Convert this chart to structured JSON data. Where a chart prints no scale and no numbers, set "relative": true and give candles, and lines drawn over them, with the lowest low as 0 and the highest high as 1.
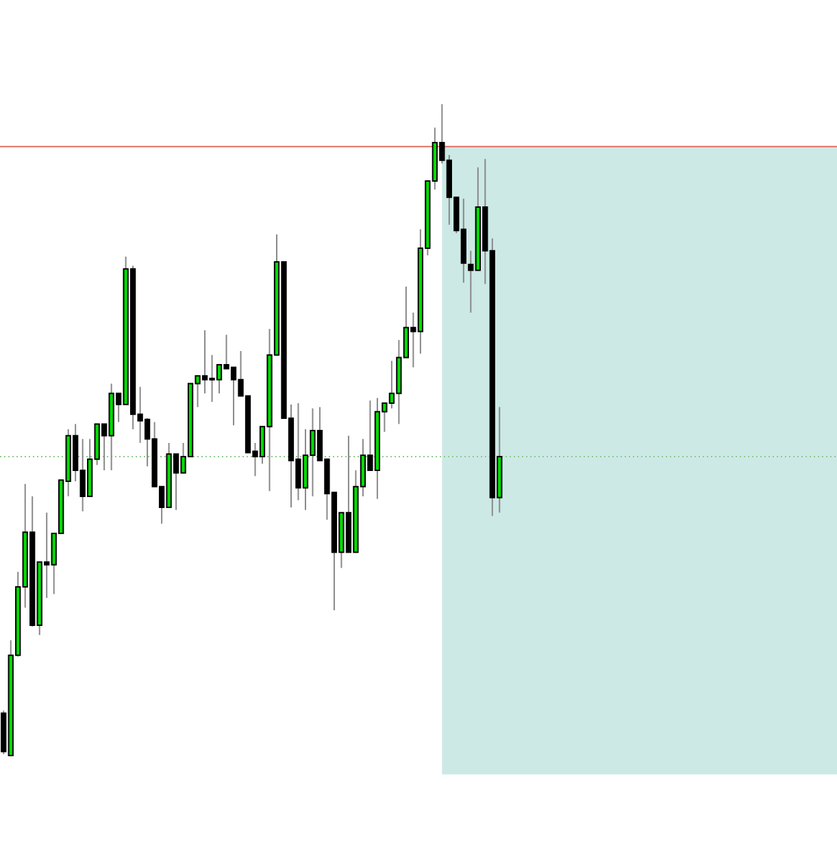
{
  "chart_data": {
    "type": "candlestick",
    "relative": true,
    "tick_labels": false,
    "colors": [
      "#000000",
      "#00dd00",
      "#00dd00",
      "#00dd00",
      "#000000",
      "#00dd00",
      "#000000",
      "#00dd00",
      "#00dd00",
      "#00dd00",
      "#000000",
      "#000000",
      "#00dd00",
      "#00dd00",
      "#000000",
      "#00dd00",
      "#000000",
      "#00dd00",
      "#000000",
      "#000000",
      "#000000",
      "#000000",
      "#000000",
      "#00dd00",
      "#000000",
      "#00dd00",
      "#00dd00",
      "#00dd00",
      "#000000",
      "#00dd00",
      "#00dd00",
      "#000000",
      "#000000",
      "#000000",
      "#000000",
      "#000000",
      "#00dd00",
      "#00dd00",
      "#00dd00",
      "#000000",
      "#000000",
      "#000000",
      "#00dd00",
      "#00dd00",
      "#000000",
      "#000000",
      "#000000",
      "#00dd00",
      "#000000",
      "#00dd00",
      "#00dd00",
      "#000000",
      "#00dd00",
      "#00dd00",
      "#00dd00",
      "#00dd00",
      "#00dd00",
      "#000000",
      "#00dd00",
      "#00dd00",
      "#00dd00",
      "#000000",
      "#000000",
      "#000000",
      "#000000",
      "#000000",
      "#00dd00",
      "#000000",
      "#000000",
      "#00dd00"
    ],
    "categories": [
      null,
      null,
      null,
      null,
      null,
      null,
      null,
      null,
      null,
      null,
      null,
      null,
      null,
      null,
      null,
      null,
      null,
      null,
      null,
      null,
      null,
      null,
      null,
      null,
      null,
      null,
      null,
      null,
      null,
      null,
      null,
      null,
      null,
      null,
      null,
      null,
      null,
      null,
      null,
      null,
      null,
      null,
      null,
      null,
      null,
      null,
      null,
      null,
      null,
      null,
      null,
      null,
      null,
      null,
      null,
      null,
      null,
      null,
      null,
      null,
      null,
      null,
      null,
      null,
      null,
      null,
      null,
      null,
      null,
      null
    ],
    "ohlc": [
      [
        0.065,
        0.069,
        0.002,
        0.006
      ],
      [
        0,
        0.177,
        0,
        0.154
      ],
      [
        0.154,
        0.282,
        0.152,
        0.259
      ],
      [
        0.259,
        0.417,
        0.227,
        0.343
      ],
      [
        0.343,
        0.398,
        0.198,
        0.2
      ],
      [
        0.2,
        0.297,
        0.185,
        0.297
      ],
      [
        0.297,
        0.373,
        0.242,
        0.293
      ],
      [
        0.293,
        0.341,
        0.248,
        0.341
      ],
      [
        0.341,
        0.423,
        0.341,
        0.423
      ],
      [
        0.421,
        0.501,
        0.398,
        0.491
      ],
      [
        0.491,
        0.509,
        0.421,
        0.438
      ],
      [
        0.438,
        0.486,
        0.375,
        0.398
      ],
      [
        0.398,
        0.486,
        0.398,
        0.455
      ],
      [
        0.455,
        0.509,
        0.446,
        0.509
      ],
      [
        0.509,
        0.509,
        0.438,
        0.491
      ],
      [
        0.491,
        0.571,
        0.438,
        0.556
      ],
      [
        0.556,
        0.556,
        0.512,
        0.539
      ],
      [
        0.539,
        0.766,
        0.539,
        0.747
      ],
      [
        0.747,
        0.752,
        0.501,
        0.524
      ],
      [
        0.524,
        0.566,
        0.48,
        0.514
      ],
      [
        0.516,
        0.518,
        0.444,
        0.486
      ],
      [
        0.486,
        0.512,
        0.413,
        0.413
      ],
      [
        0.413,
        0.413,
        0.356,
        0.381
      ],
      [
        0.381,
        0.48,
        0.381,
        0.463
      ],
      [
        0.463,
        0.463,
        0.377,
        0.434
      ],
      [
        0.434,
        0.48,
        0.434,
        0.459
      ],
      [
        0.459,
        0.571,
        0.459,
        0.571
      ],
      [
        0.571,
        0.583,
        0.535,
        0.583
      ],
      [
        0.583,
        0.653,
        0.556,
        0.577
      ],
      [
        0.577,
        0.615,
        0.543,
        0.579
      ],
      [
        0.577,
        0.6,
        0.556,
        0.6
      ],
      [
        0.6,
        0.646,
        0.594,
        0.594
      ],
      [
        0.596,
        0.596,
        0.507,
        0.577
      ],
      [
        0.577,
        0.621,
        0.552,
        0.552
      ],
      [
        0.552,
        0.552,
        0.465,
        0.465
      ],
      [
        0.467,
        0.48,
        0.429,
        0.459
      ],
      [
        0.459,
        0.505,
        0.448,
        0.505
      ],
      [
        0.505,
        0.655,
        0.406,
        0.615
      ],
      [
        0.615,
        0.8,
        0.615,
        0.758
      ],
      [
        0.758,
        0.758,
        0.518,
        0.518
      ],
      [
        0.518,
        0.539,
        0.381,
        0.453
      ],
      [
        0.455,
        0.541,
        0.392,
        0.411
      ],
      [
        0.411,
        0.501,
        0.377,
        0.461
      ],
      [
        0.461,
        0.533,
        0.398,
        0.499
      ],
      [
        0.499,
        0.535,
        0.453,
        0.453
      ],
      [
        0.455,
        0.455,
        0.362,
        0.402
      ],
      [
        0.404,
        0.404,
        0.223,
        0.312
      ],
      [
        0.312,
        0.373,
        0.288,
        0.373
      ],
      [
        0.373,
        0.491,
        0.312,
        0.312
      ],
      [
        0.312,
        0.438,
        0.312,
        0.413
      ],
      [
        0.413,
        0.486,
        0.398,
        0.461
      ],
      [
        0.461,
        0.545,
        0.438,
        0.438
      ],
      [
        0.438,
        0.549,
        0.394,
        0.528
      ],
      [
        0.528,
        0.541,
        0.497,
        0.541
      ],
      [
        0.541,
        0.606,
        0.533,
        0.556
      ],
      [
        0.556,
        0.638,
        0.509,
        0.611
      ],
      [
        0.611,
        0.72,
        0.611,
        0.657
      ],
      [
        0.657,
        0.68,
        0.596,
        0.651
      ],
      [
        0.651,
        0.808,
        0.617,
        0.779
      ],
      [
        0.779,
        0.882,
        0.768,
        0.882
      ],
      [
        0.882,
        0.964,
        0.869,
        0.941
      ],
      [
        0.941,
        1,
        0.909,
        0.914
      ],
      [
        0.914,
        0.922,
        0.815,
        0.857
      ],
      [
        0.857,
        0.857,
        0.802,
        0.806
      ],
      [
        0.808,
        0.855,
        0.726,
        0.756
      ],
      [
        0.754,
        0.775,
        0.68,
        0.745
      ],
      [
        0.745,
        0.903,
        0.745,
        0.842
      ],
      [
        0.842,
        0.916,
        0.724,
        0.775
      ],
      [
        0.775,
        0.794,
        0.368,
        0.396
      ],
      [
        0.396,
        0.535,
        0.373,
        0.459
      ]
    ],
    "ref_lines": [
      {
        "axis": "y",
        "value": 0.459,
        "color": "#8fc88f",
        "line_style": "dotted"
      },
      {
        "axis": "y",
        "value": 0.935,
        "color": "#e07060",
        "line_style": "solid"
      }
    ],
    "bands": [
      {
        "axis": "y",
        "from": -0.029,
        "to": 0.935,
        "color": "#cce9e6"
      }
    ]
  }
}
